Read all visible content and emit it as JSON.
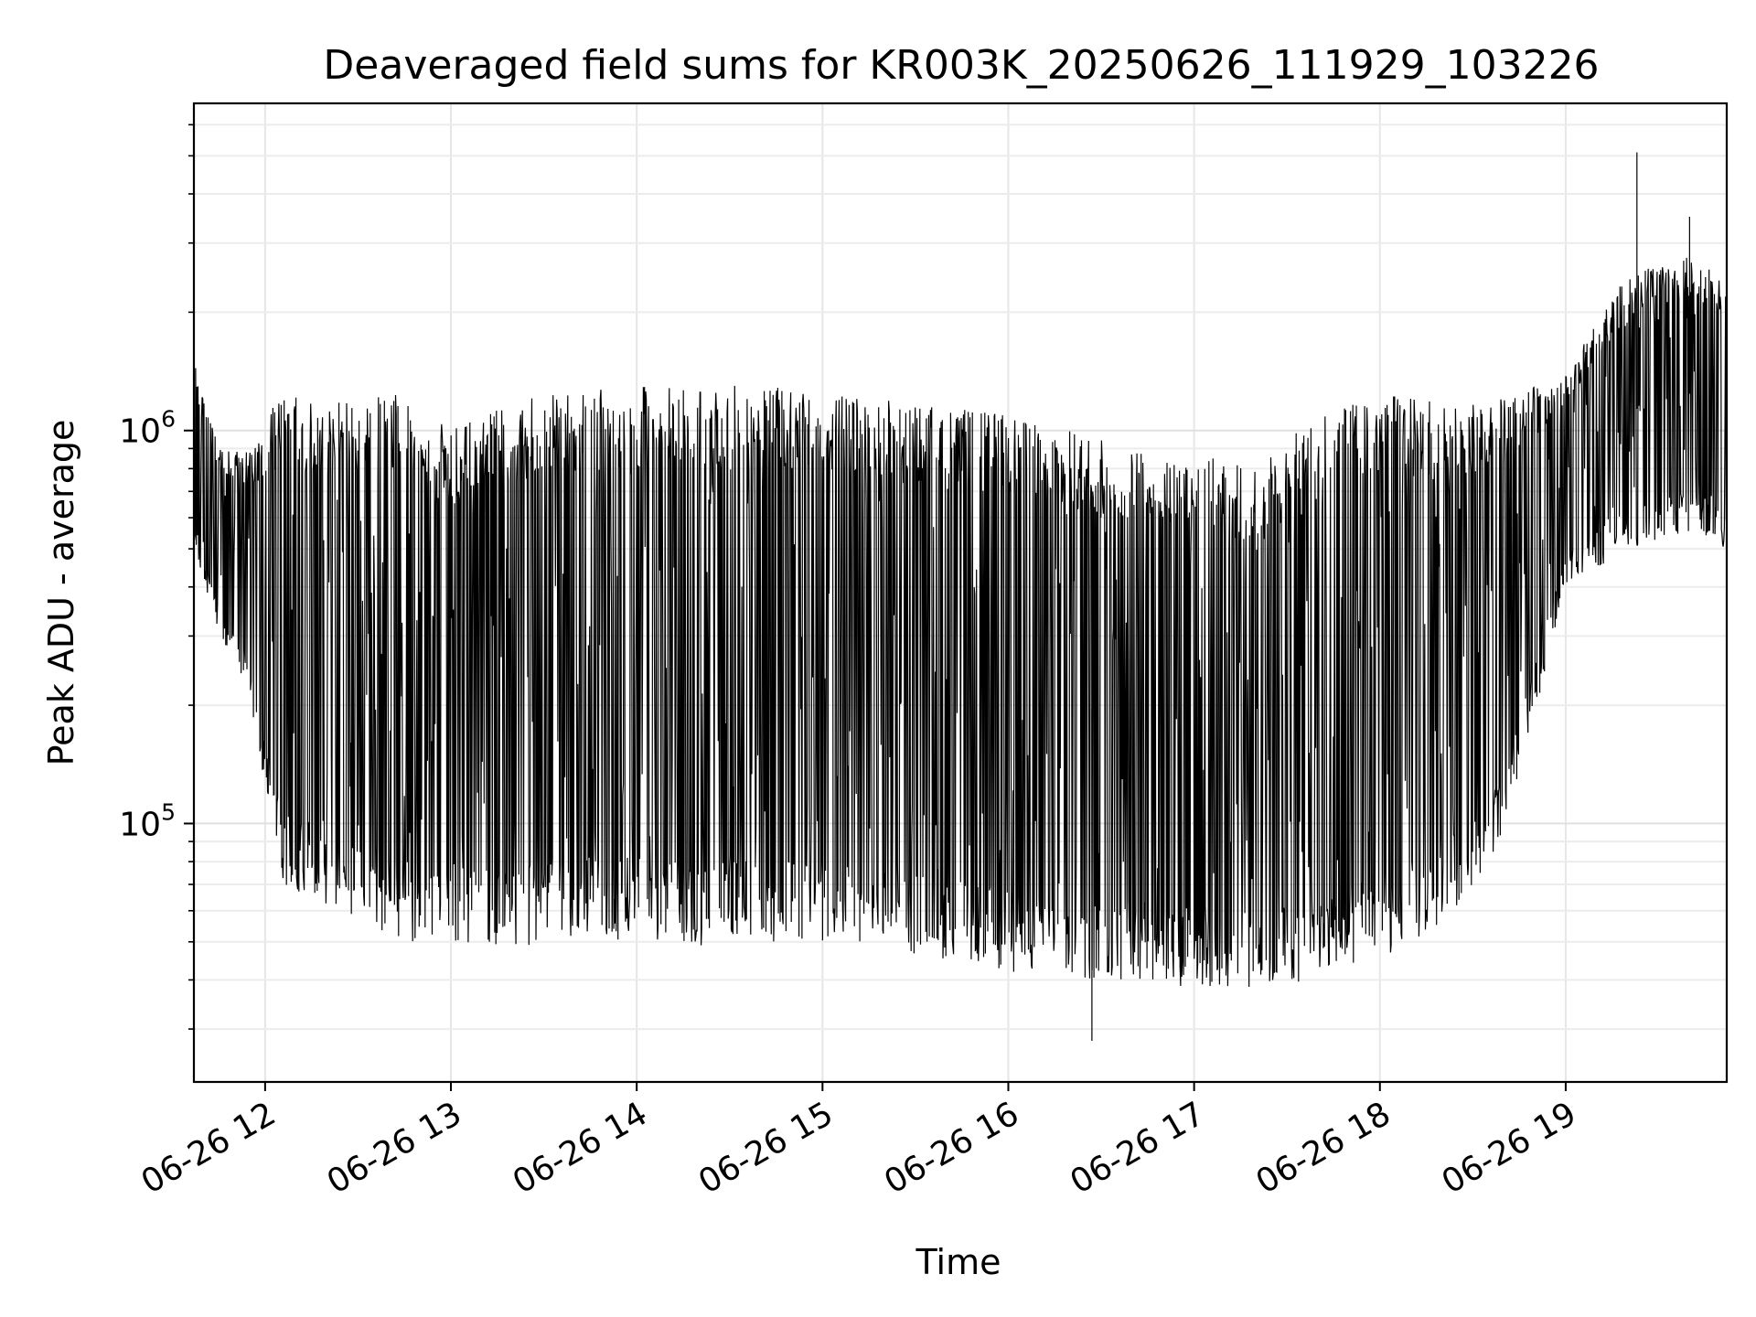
{
  "chart_data": {
    "type": "line",
    "title": "Deaveraged field sums for KR003K_20250626_111929_103226",
    "xlabel": "Time",
    "ylabel": "Peak ADU - average",
    "yscale": "log",
    "ylim": [
      22000,
      6800000
    ],
    "xlim": [
      "2025-06-26 11:37",
      "2025-06-26 19:52"
    ],
    "grid": true,
    "x_ticks": [
      {
        "t": "2025-06-26 12:00",
        "label": "06-26 12"
      },
      {
        "t": "2025-06-26 13:00",
        "label": "06-26 13"
      },
      {
        "t": "2025-06-26 14:00",
        "label": "06-26 14"
      },
      {
        "t": "2025-06-26 15:00",
        "label": "06-26 15"
      },
      {
        "t": "2025-06-26 16:00",
        "label": "06-26 16"
      },
      {
        "t": "2025-06-26 17:00",
        "label": "06-26 17"
      },
      {
        "t": "2025-06-26 18:00",
        "label": "06-26 18"
      },
      {
        "t": "2025-06-26 19:00",
        "label": "06-26 19"
      }
    ],
    "y_ticks": [
      {
        "value": 100000,
        "base": "10",
        "exp": "5"
      },
      {
        "value": 1000000,
        "base": "10",
        "exp": "6"
      }
    ],
    "series": [
      {
        "color": "#000000",
        "envelope": [
          {
            "t": "2025-06-26 11:37",
            "low": 500000,
            "high": 1500000
          },
          {
            "t": "2025-06-26 11:45",
            "low": 300000,
            "high": 900000
          },
          {
            "t": "2025-06-26 11:55",
            "low": 200000,
            "high": 900000
          },
          {
            "t": "2025-06-26 12:05",
            "low": 70000,
            "high": 1250000
          },
          {
            "t": "2025-06-26 12:15",
            "low": 65000,
            "high": 1200000
          },
          {
            "t": "2025-06-26 12:30",
            "low": 55000,
            "high": 1200000
          },
          {
            "t": "2025-06-26 12:45",
            "low": 50000,
            "high": 1250000
          },
          {
            "t": "2025-06-26 13:00",
            "low": 50000,
            "high": 1000000
          },
          {
            "t": "2025-06-26 13:20",
            "low": 48000,
            "high": 1200000
          },
          {
            "t": "2025-06-26 13:40",
            "low": 52000,
            "high": 1250000
          },
          {
            "t": "2025-06-26 14:00",
            "low": 50000,
            "high": 1300000
          },
          {
            "t": "2025-06-26 14:20",
            "low": 48000,
            "high": 1300000
          },
          {
            "t": "2025-06-26 14:40",
            "low": 50000,
            "high": 1300000
          },
          {
            "t": "2025-06-26 15:00",
            "low": 50000,
            "high": 1250000
          },
          {
            "t": "2025-06-26 15:20",
            "low": 48000,
            "high": 1200000
          },
          {
            "t": "2025-06-26 15:40",
            "low": 45000,
            "high": 1150000
          },
          {
            "t": "2025-06-26 16:00",
            "low": 42000,
            "high": 1100000
          },
          {
            "t": "2025-06-26 16:20",
            "low": 40000,
            "high": 1000000
          },
          {
            "t": "2025-06-26 16:40",
            "low": 40000,
            "high": 900000
          },
          {
            "t": "2025-06-26 17:00",
            "low": 38000,
            "high": 900000
          },
          {
            "t": "2025-06-26 17:20",
            "low": 38000,
            "high": 800000
          },
          {
            "t": "2025-06-26 17:40",
            "low": 40000,
            "high": 1100000
          },
          {
            "t": "2025-06-26 18:00",
            "low": 45000,
            "high": 1250000
          },
          {
            "t": "2025-06-26 18:20",
            "low": 55000,
            "high": 1200000
          },
          {
            "t": "2025-06-26 18:40",
            "low": 90000,
            "high": 1200000
          },
          {
            "t": "2025-06-26 19:00",
            "low": 400000,
            "high": 1400000
          },
          {
            "t": "2025-06-26 19:20",
            "low": 500000,
            "high": 2500000
          },
          {
            "t": "2025-06-26 19:40",
            "low": 550000,
            "high": 2800000
          },
          {
            "t": "2025-06-26 19:52",
            "low": 500000,
            "high": 2500000
          }
        ],
        "outliers": [
          {
            "t": "2025-06-26 19:23",
            "value": 5100000
          },
          {
            "t": "2025-06-26 16:27",
            "value": 28000
          },
          {
            "t": "2025-06-26 19:40",
            "value": 3500000
          }
        ]
      }
    ]
  }
}
